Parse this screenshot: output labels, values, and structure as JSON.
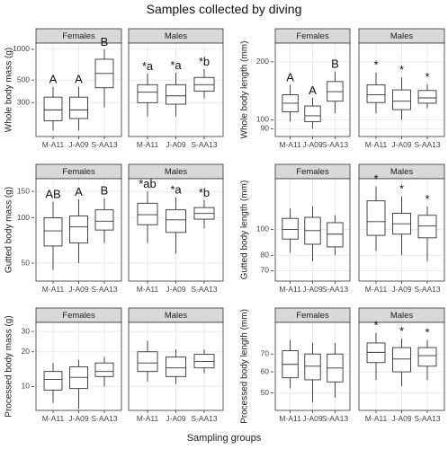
{
  "title": "Samples collected by diving",
  "xlabel": "Sampling groups",
  "colors": {
    "strip": "#d9d9d9",
    "panel_border": "#333333",
    "grid": "#ebebeb",
    "box": "#333333"
  },
  "chart_data": [
    {
      "type": "box",
      "ylabel": "Whole body mass (g)",
      "scale": "log",
      "ylim": [
        140,
        1150
      ],
      "yticks": [
        300,
        500,
        1000
      ],
      "categories": [
        "M-A11",
        "J-A09",
        "S-AA13"
      ],
      "panels": [
        {
          "name": "Females",
          "boxes": [
            {
              "whislo": 160,
              "q1": 200,
              "med": 255,
              "q3": 340,
              "whishi": 430
            },
            {
              "whislo": 160,
              "q1": 210,
              "med": 255,
              "q3": 340,
              "whishi": 430
            },
            {
              "whislo": 270,
              "q1": 420,
              "med": 580,
              "q3": 800,
              "whishi": 1000
            }
          ],
          "labels": [
            "A",
            "A",
            "B"
          ]
        },
        {
          "name": "Males",
          "boxes": [
            {
              "whislo": 220,
              "q1": 300,
              "med": 380,
              "q3": 450,
              "whishi": 580
            },
            {
              "whislo": 220,
              "q1": 290,
              "med": 350,
              "q3": 450,
              "whishi": 590
            },
            {
              "whislo": 330,
              "q1": 390,
              "med": 450,
              "q3": 530,
              "whishi": 640
            }
          ],
          "labels": [
            "*a",
            "*a",
            "*b"
          ]
        }
      ]
    },
    {
      "type": "box",
      "ylabel": "Whole body length (mm)",
      "scale": "log",
      "ylim": [
        82,
        250
      ],
      "yticks": [
        90,
        100,
        200
      ],
      "categories": [
        "M-A11",
        "J-A09",
        "S-AA13"
      ],
      "panels": [
        {
          "name": "Females",
          "boxes": [
            {
              "whislo": 98,
              "q1": 110,
              "med": 122,
              "q3": 135,
              "whishi": 152
            },
            {
              "whislo": 90,
              "q1": 98,
              "med": 105,
              "q3": 118,
              "whishi": 130
            },
            {
              "whislo": 108,
              "q1": 125,
              "med": 140,
              "q3": 158,
              "whishi": 178
            }
          ],
          "labels": [
            "A",
            "A",
            "B"
          ]
        },
        {
          "name": "Males",
          "boxes": [
            {
              "whislo": 108,
              "q1": 123,
              "med": 135,
              "q3": 152,
              "whishi": 176
            },
            {
              "whislo": 100,
              "q1": 113,
              "med": 125,
              "q3": 143,
              "whishi": 166
            },
            {
              "whislo": 115,
              "q1": 122,
              "med": 130,
              "q3": 142,
              "whishi": 153
            }
          ],
          "labels": [
            "*",
            "*",
            "*"
          ]
        }
      ]
    },
    {
      "type": "box",
      "ylabel": "Gutted body mass (g)",
      "scale": "log",
      "ylim": [
        38,
        182
      ],
      "yticks": [
        50,
        100,
        150
      ],
      "categories": [
        "M-A11",
        "J-A09",
        "S-AA13"
      ],
      "panels": [
        {
          "name": "Females",
          "boxes": [
            {
              "whislo": 45,
              "q1": 65,
              "med": 82,
              "q3": 100,
              "whishi": 128
            },
            {
              "whislo": 50,
              "q1": 68,
              "med": 87,
              "q3": 103,
              "whishi": 133
            },
            {
              "whislo": 68,
              "q1": 83,
              "med": 95,
              "q3": 113,
              "whishi": 135
            }
          ],
          "labels": [
            "AB",
            "A",
            "B"
          ]
        },
        {
          "name": "Males",
          "boxes": [
            {
              "whislo": 68,
              "q1": 90,
              "med": 105,
              "q3": 125,
              "whishi": 150
            },
            {
              "whislo": 58,
              "q1": 80,
              "med": 97,
              "q3": 113,
              "whishi": 137
            },
            {
              "whislo": 85,
              "q1": 98,
              "med": 107,
              "q3": 117,
              "whishi": 131
            }
          ],
          "labels": [
            "*ab",
            "*a",
            "*b"
          ]
        }
      ]
    },
    {
      "type": "box",
      "ylabel": "Gutted body length (mm)",
      "scale": "log",
      "ylim": [
        64,
        155
      ],
      "yticks": [
        70,
        80,
        100
      ],
      "categories": [
        "M-A11",
        "J-A09",
        "S-AA13"
      ],
      "panels": [
        {
          "name": "Females",
          "boxes": [
            {
              "whislo": 82,
              "q1": 92,
              "med": 100,
              "q3": 110,
              "whishi": 120
            },
            {
              "whislo": 76,
              "q1": 88,
              "med": 99,
              "q3": 111,
              "whishi": 122
            },
            {
              "whislo": 80,
              "q1": 86,
              "med": 96,
              "q3": 106,
              "whishi": 113
            }
          ],
          "labels": [
            "",
            "",
            ""
          ]
        },
        {
          "name": "Males",
          "boxes": [
            {
              "whislo": 83,
              "q1": 95,
              "med": 107,
              "q3": 128,
              "whishi": 145
            },
            {
              "whislo": 80,
              "q1": 96,
              "med": 105,
              "q3": 115,
              "whishi": 133
            },
            {
              "whislo": 76,
              "q1": 93,
              "med": 103,
              "q3": 113,
              "whishi": 122
            }
          ],
          "labels": [
            "*",
            "*",
            "*"
          ]
        }
      ]
    },
    {
      "type": "box",
      "ylabel": "Processed body mass (g)",
      "scale": "log",
      "ylim": [
        6.2,
        36
      ],
      "yticks": [
        10,
        20,
        30
      ],
      "categories": [
        "M-A11",
        "J-A09",
        "S-AA13"
      ],
      "panels": [
        {
          "name": "Females",
          "boxes": [
            {
              "whislo": 7.2,
              "q1": 9.3,
              "med": 11.5,
              "q3": 13.5,
              "whishi": 16
            },
            {
              "whislo": 6.4,
              "q1": 9.6,
              "med": 12,
              "q3": 14.8,
              "whishi": 17
            },
            {
              "whislo": 10,
              "q1": 12.2,
              "med": 13.5,
              "q3": 16,
              "whishi": 18
            }
          ],
          "labels": [
            "",
            "",
            ""
          ]
        },
        {
          "name": "Males",
          "boxes": [
            {
              "whislo": 11,
              "q1": 13.5,
              "med": 16,
              "q3": 20,
              "whishi": 25
            },
            {
              "whislo": 10.5,
              "q1": 12.2,
              "med": 14.5,
              "q3": 18,
              "whishi": 21
            },
            {
              "whislo": 13,
              "q1": 14.5,
              "med": 16.5,
              "q3": 19,
              "whishi": 21
            }
          ],
          "labels": [
            "",
            "",
            ""
          ]
        }
      ]
    },
    {
      "type": "box",
      "ylabel": "Processed body length (mm)",
      "scale": "log",
      "ylim": [
        43,
        92
      ],
      "yticks": [
        50,
        60,
        70
      ],
      "categories": [
        "M-A11",
        "J-A09",
        "S-AA13"
      ],
      "panels": [
        {
          "name": "Females",
          "boxes": [
            {
              "whislo": 52,
              "q1": 57,
              "med": 64,
              "q3": 72,
              "whishi": 79
            },
            {
              "whislo": 46,
              "q1": 56,
              "med": 63,
              "q3": 70,
              "whishi": 77
            },
            {
              "whislo": 48,
              "q1": 55,
              "med": 62,
              "q3": 70,
              "whishi": 77
            }
          ],
          "labels": [
            "",
            "",
            ""
          ]
        },
        {
          "name": "Males",
          "boxes": [
            {
              "whislo": 56,
              "q1": 65,
              "med": 71,
              "q3": 77,
              "whishi": 84
            },
            {
              "whislo": 53,
              "q1": 60,
              "med": 67,
              "q3": 74,
              "whishi": 80
            },
            {
              "whislo": 56,
              "q1": 63,
              "med": 69,
              "q3": 74,
              "whishi": 79
            }
          ],
          "labels": [
            "*",
            "*",
            "*"
          ]
        }
      ]
    }
  ]
}
